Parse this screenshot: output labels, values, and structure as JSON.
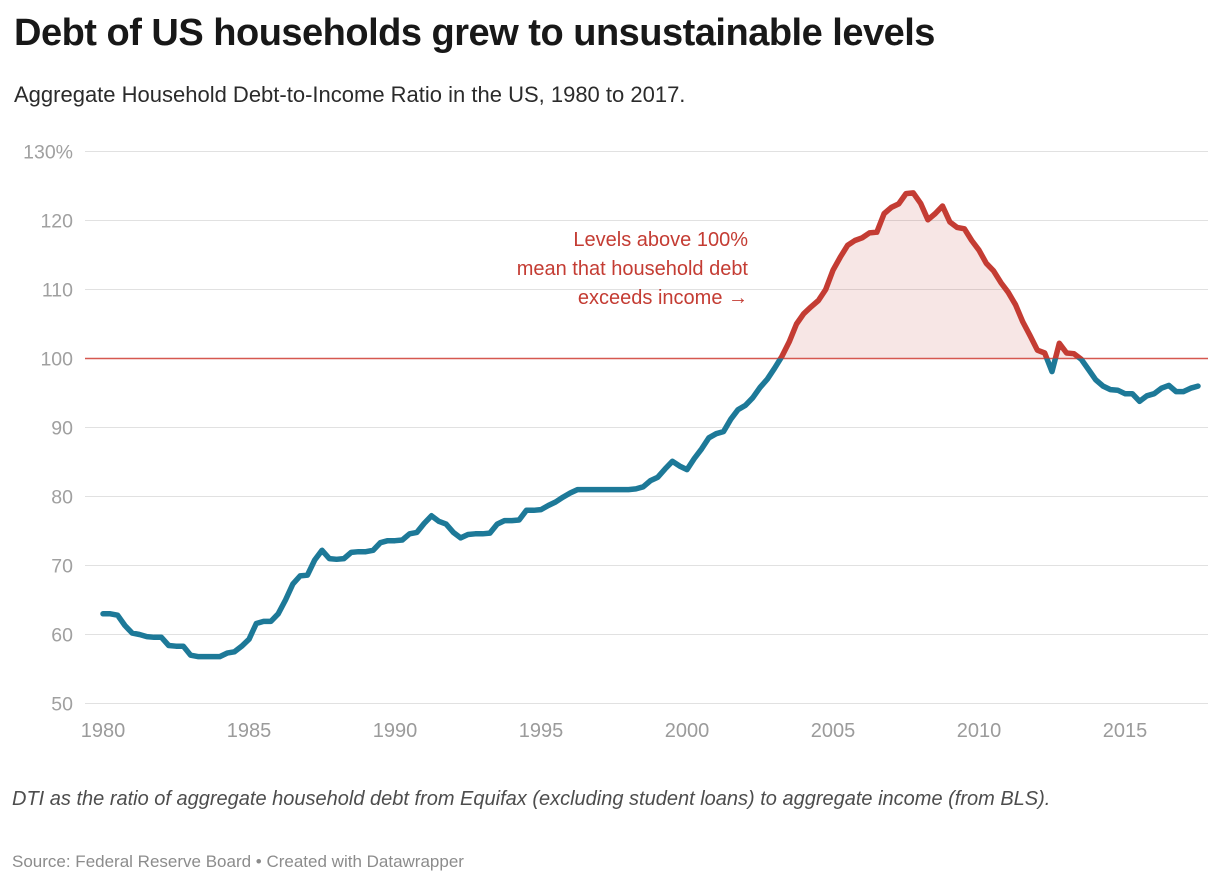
{
  "chart_data": {
    "type": "line",
    "title": "Debt of US households grew to unsustainable levels",
    "subtitle": "Aggregate Household Debt-to-Income Ratio in the US, 1980 to 2017.",
    "series_name": "Aggregate household debt-to-income ratio",
    "unit": "%",
    "x_start": 1980,
    "x_step": 0.25,
    "x_end": 2017.5,
    "ylim": [
      50,
      130
    ],
    "threshold": 100,
    "grid": "on",
    "x_ticks": [
      1980,
      1985,
      1990,
      1995,
      2000,
      2005,
      2010,
      2015
    ],
    "y_ticks": [
      {
        "v": 130,
        "label": "130%"
      },
      {
        "v": 120,
        "label": "120"
      },
      {
        "v": 110,
        "label": "110"
      },
      {
        "v": 100,
        "label": "100"
      },
      {
        "v": 90,
        "label": "90"
      },
      {
        "v": 80,
        "label": "80"
      },
      {
        "v": 70,
        "label": "70"
      },
      {
        "v": 60,
        "label": "60"
      },
      {
        "v": 50,
        "label": "50"
      }
    ],
    "values": [
      63,
      63,
      62.8,
      61.3,
      60.2,
      60,
      59.7,
      59.6,
      59.6,
      58.4,
      58.3,
      58.3,
      57,
      56.8,
      56.8,
      56.8,
      56.8,
      57.3,
      57.5,
      58.3,
      59.3,
      61.6,
      61.9,
      61.9,
      63,
      65,
      67.3,
      68.5,
      68.6,
      70.8,
      72.2,
      71,
      70.9,
      71,
      71.9,
      72,
      72,
      72.2,
      73.3,
      73.6,
      73.6,
      73.7,
      74.6,
      74.8,
      76.1,
      77.2,
      76.4,
      76,
      74.8,
      74,
      74.5,
      74.6,
      74.6,
      74.7,
      76,
      76.5,
      76.5,
      76.6,
      78,
      78,
      78.1,
      78.7,
      79.2,
      79.9,
      80.5,
      81,
      81,
      81,
      81,
      81,
      81,
      81,
      81,
      81.1,
      81.4,
      82.3,
      82.8,
      84,
      85.1,
      84.4,
      83.9,
      85.5,
      86.9,
      88.5,
      89.1,
      89.4,
      91.2,
      92.6,
      93.2,
      94.3,
      95.8,
      97,
      98.6,
      100.3,
      102.4,
      105,
      106.5,
      107.5,
      108.4,
      110,
      112.8,
      114.7,
      116.4,
      117.1,
      117.5,
      118.2,
      118.3,
      121,
      121.9,
      122.4,
      123.9,
      124,
      122.5,
      120.1,
      121,
      122.1,
      119.8,
      119,
      118.8,
      117.1,
      115.7,
      113.8,
      112.7,
      111,
      109.6,
      107.8,
      105.3,
      103.3,
      101.2,
      100.8,
      98.1,
      102.2,
      100.8,
      100.7,
      99.9,
      98.4,
      96.9,
      96,
      95.5,
      95.4,
      94.9,
      94.9,
      93.8,
      94.6,
      94.9,
      95.7,
      96.1,
      95.2,
      95.2,
      95.7,
      96
    ]
  },
  "annotation": {
    "lines": [
      "Levels above 100%",
      "mean that household debt",
      "exceeds income →"
    ]
  },
  "footer": {
    "note": "DTI as the ratio of aggregate household debt from Equifax (excluding student loans) to aggregate income (from BLS).",
    "source": "Source: Federal Reserve Board • Created with Datawrapper"
  },
  "colors": {
    "teal": "#1d7998",
    "red": "#c43c33",
    "threshold_line": "#d65850",
    "fill": "rgba(196,60,51,0.13)",
    "grid": "#e1e1e1",
    "axis_label": "#a0a0a0",
    "x_label": "#9b9b9b"
  }
}
